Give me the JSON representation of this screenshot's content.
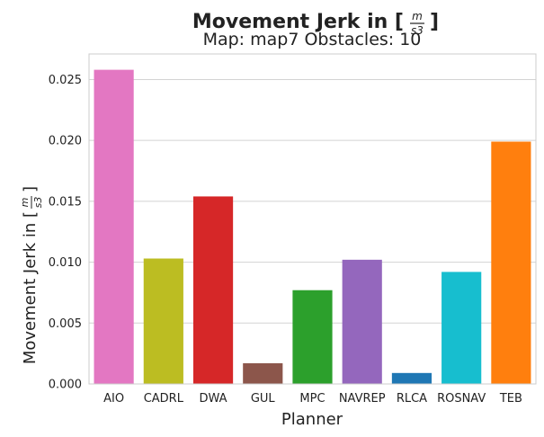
{
  "chart_data": {
    "type": "bar",
    "title": "Movement Jerk in [",
    "title_unit": {
      "numerator": "m",
      "denominator": "s3",
      "close": "]"
    },
    "subtitle": "Map: map7 Obstacles: 10",
    "xlabel": "Planner",
    "ylabel": "Movement Jerk in [",
    "ylabel_unit": {
      "numerator": "m",
      "denominator": "s3",
      "close": "]"
    },
    "categories": [
      "AIO",
      "CADRL",
      "DWA",
      "GUL",
      "MPC",
      "NAVREP",
      "RLCA",
      "ROSNAV",
      "TEB"
    ],
    "values": [
      0.0258,
      0.0103,
      0.0154,
      0.0017,
      0.0077,
      0.0102,
      0.0009,
      0.0092,
      0.0199
    ],
    "colors": [
      "#e377c2",
      "#bcbd22",
      "#d62728",
      "#8c564b",
      "#2ca02c",
      "#9467bd",
      "#1f77b4",
      "#17becf",
      "#ff7f0e"
    ],
    "yticks": [
      "0.000",
      "0.005",
      "0.010",
      "0.015",
      "0.020",
      "0.025"
    ],
    "ytick_values": [
      0,
      0.005,
      0.01,
      0.015,
      0.02,
      0.025
    ],
    "ylim": [
      0,
      0.0271
    ],
    "grid": true
  }
}
